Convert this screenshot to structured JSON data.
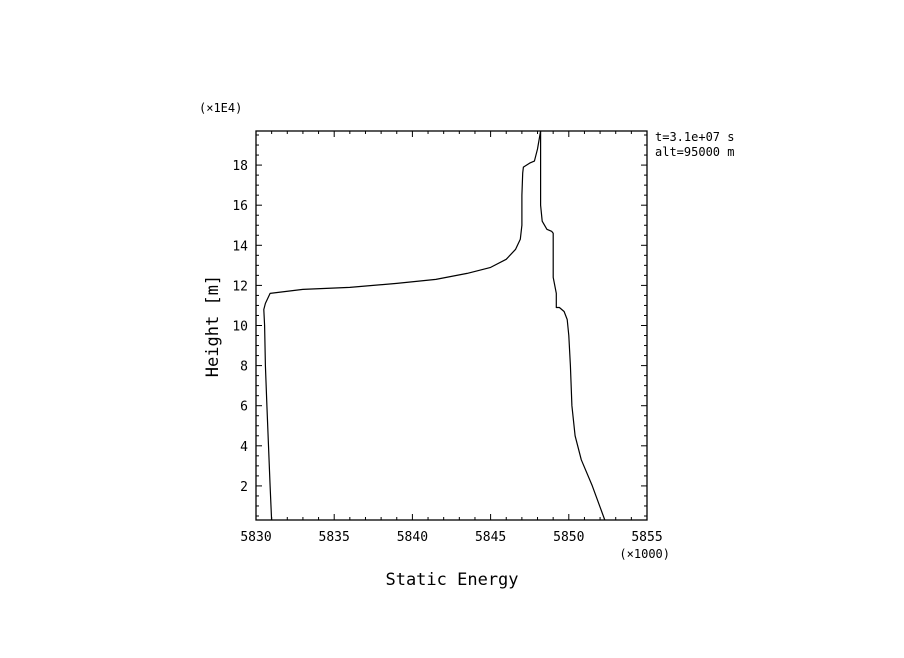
{
  "chart_data": {
    "type": "line",
    "title": "",
    "xlabel": "Static Energy",
    "ylabel": "Height [m]",
    "x_multiplier_label": "(×1000)",
    "y_multiplier_label": "(×1E4)",
    "xlim": [
      5830,
      5855
    ],
    "ylim": [
      0.3,
      19.7
    ],
    "x_ticks": [
      5830,
      5835,
      5840,
      5845,
      5850,
      5855
    ],
    "y_ticks": [
      2,
      4,
      6,
      8,
      10,
      12,
      14,
      16,
      18
    ],
    "x_tick_labels": [
      "5830",
      "5835",
      "5840",
      "5845",
      "5850",
      "5855"
    ],
    "y_tick_labels": [
      "2",
      "4",
      "6",
      "8",
      "10",
      "12",
      "14",
      "16",
      "18"
    ],
    "grid": false,
    "legend": false,
    "annotations": [
      "t=3.1e+07 s",
      "alt=95000 m"
    ],
    "line_color": "#000000",
    "series": [
      {
        "x": [
          5831.0,
          5830.9,
          5830.8,
          5830.7,
          5830.6,
          5830.55,
          5830.5,
          5830.6,
          5830.9,
          5833.0,
          5836.0,
          5839.0,
          5841.5,
          5843.5,
          5845.0,
          5846.0,
          5846.6,
          5846.9,
          5847.0,
          5847.0,
          5847.05,
          5847.1,
          5847.5,
          5847.8,
          5848.0,
          5848.2
        ],
        "y": [
          0.3,
          2.0,
          4.0,
          6.0,
          8.0,
          10.0,
          10.8,
          11.1,
          11.6,
          11.8,
          11.9,
          12.1,
          12.3,
          12.6,
          12.9,
          13.3,
          13.8,
          14.3,
          15.0,
          16.5,
          17.6,
          17.9,
          18.1,
          18.2,
          18.8,
          19.7
        ]
      },
      {
        "x": [
          5852.3,
          5851.5,
          5850.8,
          5850.4,
          5850.2,
          5850.1,
          5850.0,
          5849.9,
          5849.7,
          5849.4,
          5849.2,
          5849.2,
          5849.0,
          5849.0,
          5848.9,
          5848.6,
          5848.3,
          5848.2,
          5848.2
        ],
        "y": [
          0.3,
          2.0,
          3.3,
          4.5,
          6.0,
          8.0,
          9.5,
          10.3,
          10.7,
          10.9,
          10.9,
          11.6,
          12.4,
          14.6,
          14.7,
          14.8,
          15.2,
          16.0,
          19.7
        ]
      }
    ]
  }
}
